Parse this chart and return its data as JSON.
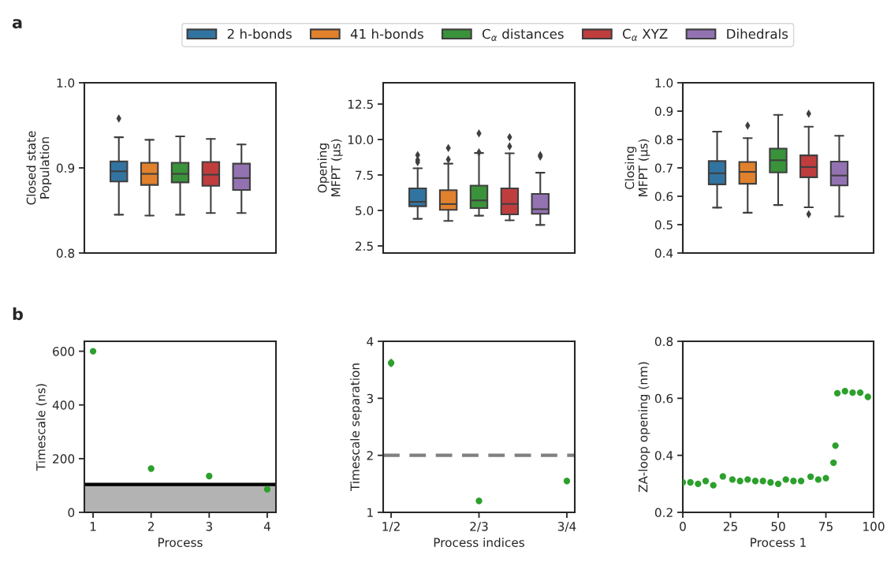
{
  "chart_data": [
    {
      "type": "box",
      "ylabel": "Closed state\nPopulation",
      "categories": [
        null
      ],
      "ylim": [
        0.8,
        1.0
      ],
      "yticks": [
        0.8,
        0.9,
        {
          "value": 1,
          "label": "1.0"
        }
      ],
      "tick_labels": "y",
      "legend": "top",
      "annotations": [
        "a"
      ],
      "series": [
        {
          "name": "2 h-bonds",
          "color": "#3274a1",
          "boxes": [
            {
              "low": 0.845,
              "q1": 0.884,
              "median": 0.896,
              "q3": 0.9075,
              "high": 0.936,
              "outliers": [
                0.958
              ]
            }
          ]
        },
        {
          "name": "41 h-bonds",
          "color": "#e1812c",
          "boxes": [
            {
              "low": 0.844,
              "q1": 0.88,
              "median": 0.893,
              "q3": 0.906,
              "high": 0.933
            }
          ]
        },
        {
          "name": "C$_{α}$ distances",
          "color": "#3a923a",
          "boxes": [
            {
              "low": 0.845,
              "q1": 0.883,
              "median": 0.893,
              "q3": 0.906,
              "high": 0.937
            }
          ]
        },
        {
          "name": "C$_{α}$ XYZ",
          "color": "#c03d3e",
          "boxes": [
            {
              "low": 0.847,
              "q1": 0.879,
              "median": 0.892,
              "q3": 0.907,
              "high": 0.934
            }
          ]
        },
        {
          "name": "Dihedrals",
          "color": "#9372b2",
          "boxes": [
            {
              "low": 0.847,
              "q1": 0.874,
              "median": 0.888,
              "q3": 0.905,
              "high": 0.9275
            }
          ]
        }
      ]
    },
    {
      "type": "box",
      "ylabel": "Opening\nMFPT (μs)",
      "categories": [
        null
      ],
      "ylim": [
        2.0,
        14.0
      ],
      "yticks": [
        2.5,
        {
          "value": 5,
          "label": "5.0"
        },
        7.5,
        {
          "value": 10,
          "label": "10.0"
        },
        12.5
      ],
      "tick_labels": "y",
      "series": [
        {
          "color": "#3274a1",
          "boxes": [
            {
              "low": 4.41,
              "q1": 5.3,
              "median": 5.61,
              "q3": 6.56,
              "high": 7.97,
              "outliers": [
                8.4,
                8.55,
                8.9
              ]
            }
          ]
        },
        {
          "color": "#e1812c",
          "boxes": [
            {
              "low": 4.26,
              "q1": 5.04,
              "median": 5.45,
              "q3": 6.43,
              "high": 8.3,
              "outliers": [
                8.6,
                9.4
              ]
            }
          ]
        },
        {
          "color": "#3a923a",
          "boxes": [
            {
              "low": 4.63,
              "q1": 5.17,
              "median": 5.71,
              "q3": 6.75,
              "high": 9.05,
              "outliers": [
                9.1,
                10.43
              ]
            }
          ]
        },
        {
          "color": "#c03d3e",
          "boxes": [
            {
              "low": 4.31,
              "q1": 4.72,
              "median": 5.46,
              "q3": 6.56,
              "high": 9.03,
              "outliers": [
                9.52,
                10.17
              ]
            }
          ]
        },
        {
          "color": "#9372b2",
          "boxes": [
            {
              "low": 3.98,
              "q1": 4.76,
              "median": 5.09,
              "q3": 6.17,
              "high": 7.66,
              "outliers": [
                8.8,
                8.9
              ]
            }
          ]
        }
      ]
    },
    {
      "type": "box",
      "ylabel": "Closing\nMFPT (μs)",
      "categories": [
        null
      ],
      "ylim": [
        0.4,
        1.0
      ],
      "yticks": [
        0.4,
        0.5,
        0.6,
        0.7,
        0.8,
        0.9,
        {
          "value": 1,
          "label": "1.0"
        }
      ],
      "tick_labels": "y",
      "series": [
        {
          "color": "#3274a1",
          "boxes": [
            {
              "low": 0.56,
              "q1": 0.642,
              "median": 0.681,
              "q3": 0.724,
              "high": 0.828
            }
          ]
        },
        {
          "color": "#e1812c",
          "boxes": [
            {
              "low": 0.542,
              "q1": 0.644,
              "median": 0.686,
              "q3": 0.721,
              "high": 0.805,
              "outliers": [
                0.849
              ]
            }
          ]
        },
        {
          "color": "#3a923a",
          "boxes": [
            {
              "low": 0.569,
              "q1": 0.684,
              "median": 0.727,
              "q3": 0.768,
              "high": 0.887
            }
          ]
        },
        {
          "color": "#c03d3e",
          "boxes": [
            {
              "low": 0.561,
              "q1": 0.667,
              "median": 0.703,
              "q3": 0.744,
              "high": 0.845,
              "outliers": [
                0.537,
                0.891
              ]
            }
          ]
        },
        {
          "color": "#9372b2",
          "boxes": [
            {
              "low": 0.529,
              "q1": 0.638,
              "median": 0.673,
              "q3": 0.722,
              "high": 0.813
            }
          ]
        }
      ]
    },
    {
      "type": "scatter",
      "xlabel": "Process",
      "ylabel": "Timescale (ns)",
      "x": [
        1,
        2,
        3,
        4
      ],
      "xlim": [
        0.85,
        4.15
      ],
      "xticks": [
        1,
        2,
        3,
        4
      ],
      "ylim": [
        0,
        637
      ],
      "yticks": [
        0,
        200,
        400,
        600
      ],
      "marker": "circle",
      "annotations": [
        "b"
      ],
      "bands": [
        {
          "axis": "y",
          "from": 0,
          "to": 100,
          "color": "#b3b3b3"
        }
      ],
      "ref_lines": [
        {
          "axis": "y",
          "value": 104,
          "color": "#000000",
          "line_style": "solid"
        }
      ],
      "series": [
        {
          "color": "#2ca02c",
          "values": [
            600,
            163,
            135,
            86
          ]
        }
      ]
    },
    {
      "type": "scatter",
      "xlabel": "Process indices",
      "ylabel": "Timescale separation",
      "categories": [
        "1/2",
        "2/3",
        "3/4"
      ],
      "ylim": [
        1,
        4
      ],
      "yticks": [
        1,
        2,
        3,
        4
      ],
      "marker": "circle",
      "ref_lines": [
        {
          "axis": "y",
          "value": 2,
          "color": "#808080",
          "line_style": "dashed"
        }
      ],
      "series": [
        {
          "color": "#2ca02c",
          "values": [
            3.62,
            1.2,
            1.55
          ],
          "errors": [
            0.07,
            null,
            null
          ]
        }
      ]
    },
    {
      "type": "scatter",
      "xlabel": "Process 1",
      "ylabel": "ZA-loop opening (nm)",
      "xlim": [
        0,
        100
      ],
      "xticks": [
        0,
        25,
        50,
        75,
        100
      ],
      "ylim": [
        0.2,
        0.8
      ],
      "yticks": [
        0.2,
        0.4,
        0.6,
        0.8
      ],
      "marker": "circle",
      "x": [
        0,
        4,
        8,
        12,
        16,
        21,
        26,
        30,
        34,
        38,
        42,
        46,
        50,
        54,
        58,
        62,
        67,
        71,
        75,
        79,
        80,
        81,
        85,
        89,
        93,
        97
      ],
      "series": [
        {
          "color": "#2ca02c",
          "values": [
            0.305,
            0.305,
            0.3,
            0.31,
            0.295,
            0.326,
            0.315,
            0.31,
            0.315,
            0.31,
            0.31,
            0.305,
            0.3,
            0.315,
            0.31,
            0.31,
            0.325,
            0.315,
            0.32,
            0.374,
            0.434,
            0.618,
            0.625,
            0.62,
            0.62,
            0.605
          ]
        }
      ]
    }
  ]
}
